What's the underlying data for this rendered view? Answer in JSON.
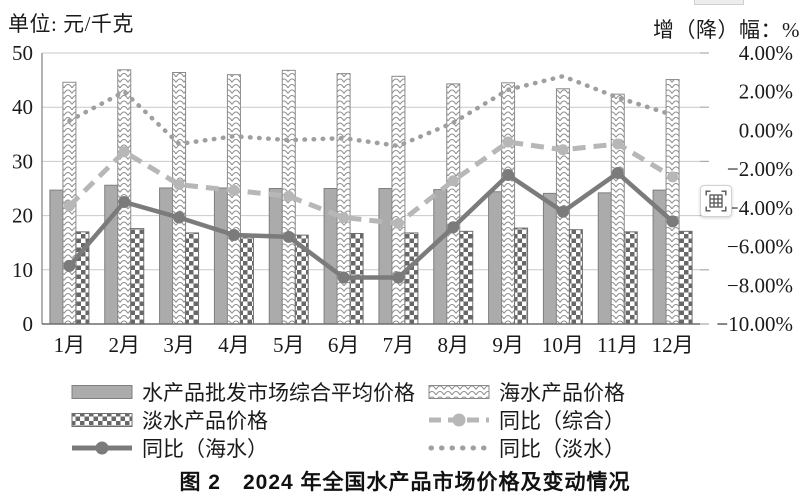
{
  "caption": "图 2　2024 年全国水产品市场价格及变动情况",
  "overlay": {
    "extract_table_tooltip": "extract-table"
  },
  "chart_data": {
    "type": "bar+line combo",
    "categories": [
      "1月",
      "2月",
      "3月",
      "4月",
      "5月",
      "6月",
      "7月",
      "8月",
      "9月",
      "10月",
      "11月",
      "12月"
    ],
    "left_axis": {
      "title": "单位: 元/千克",
      "min": 0,
      "max": 50,
      "ticks": [
        "0",
        "10",
        "20",
        "30",
        "40",
        "50"
      ],
      "tick_values": [
        0,
        10,
        20,
        30,
        40,
        50
      ]
    },
    "right_axis": {
      "title": "增（降）幅：%",
      "min": -10,
      "max": 4,
      "tick_labels": [
        "4.00%",
        "2.00%",
        "0.00%",
        "−2.00%",
        "−4.00%",
        "−6.00%",
        "−8.00%",
        "−10.00%"
      ],
      "tick_values": [
        4,
        2,
        0,
        -2,
        -4,
        -6,
        -8,
        -10
      ]
    },
    "grid": "horizontal",
    "legend_position": "bottom, two columns",
    "bar_series": [
      {
        "name": "水产品批发市场综合平均价格",
        "style": "solid-gray",
        "axis": "left",
        "values": [
          24.7,
          25.6,
          25.1,
          25.1,
          25.0,
          25.0,
          25.0,
          24.8,
          24.4,
          24.1,
          24.2,
          24.7
        ]
      },
      {
        "name": "海水产品价格",
        "style": "scale-hatch",
        "axis": "left",
        "values": [
          44.6,
          46.9,
          46.4,
          46.0,
          46.8,
          46.2,
          45.7,
          44.3,
          44.5,
          43.4,
          42.4,
          45.1
        ]
      },
      {
        "name": "淡水产品价格",
        "style": "checkerboard",
        "axis": "left",
        "values": [
          17.0,
          17.6,
          16.8,
          16.5,
          16.4,
          16.7,
          16.8,
          17.1,
          17.7,
          17.4,
          17.0,
          17.1
        ]
      }
    ],
    "line_series": [
      {
        "name": "同比（综合）",
        "style": "dashed",
        "axis": "right",
        "values": [
          -3.9,
          -1.1,
          -2.8,
          -3.1,
          -3.4,
          -4.5,
          -4.8,
          -2.6,
          -0.6,
          -1.0,
          -0.7,
          -2.4
        ]
      },
      {
        "name": "同比（海水）",
        "style": "solid",
        "axis": "right",
        "values": [
          -7.0,
          -3.7,
          -4.5,
          -5.4,
          -5.5,
          -7.6,
          -7.6,
          -5.0,
          -2.3,
          -4.2,
          -2.2,
          -4.7
        ]
      },
      {
        "name": "同比（淡水）",
        "style": "dotted",
        "axis": "right",
        "values": [
          0.5,
          2.0,
          -0.7,
          -0.3,
          -0.5,
          -0.4,
          -0.8,
          0.4,
          2.1,
          2.8,
          1.7,
          0.8
        ]
      }
    ],
    "colors": {
      "bar_gray_fill": "#ababab",
      "bar_gray_border": "#7f7f7f",
      "hatch_stroke": "#8f8f8f",
      "checker_dark": "#686868",
      "line_dashed": "#b7b7b7",
      "line_solid": "#7b7b7b",
      "line_dotted": "#9f9f9f",
      "gridline": "#c9c9c9",
      "axis": "#6e6e6e",
      "text": "#1a1a1a"
    }
  }
}
